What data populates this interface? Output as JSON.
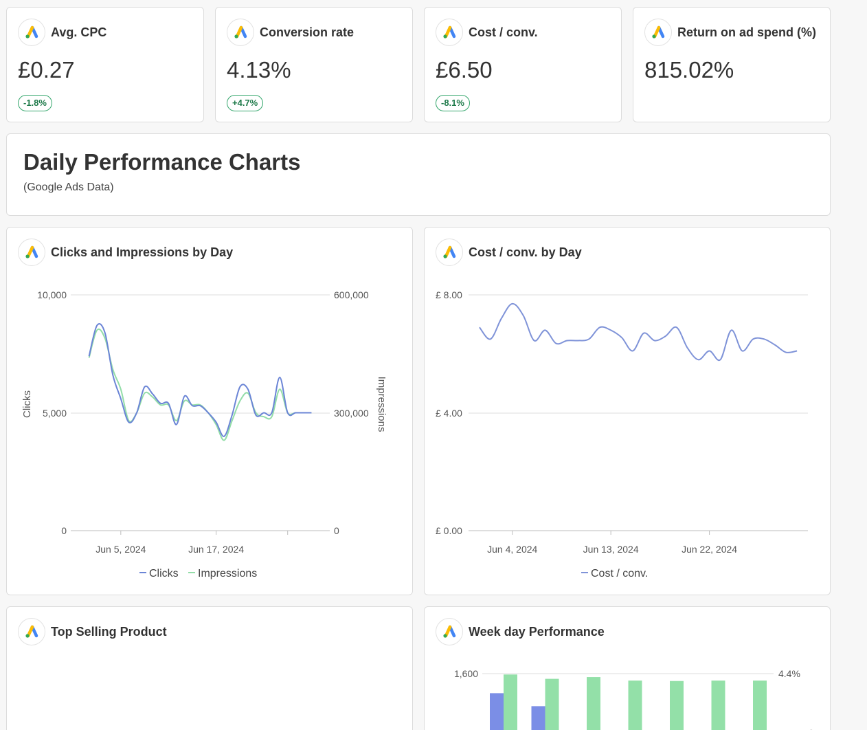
{
  "metrics": [
    {
      "title": "Avg. CPC",
      "value": "£0.27",
      "change": "-1.8%"
    },
    {
      "title": "Conversion rate",
      "value": "4.13%",
      "change": "+4.7%"
    },
    {
      "title": "Cost / conv.",
      "value": "£6.50",
      "change": "-8.1%"
    },
    {
      "title": "Return on ad spend (%)",
      "value": "815.02%",
      "change": ""
    }
  ],
  "header": {
    "title": "Daily Performance Charts",
    "subtitle": "(Google Ads Data)"
  },
  "panels": {
    "clicks_chart_title": "Clicks and Impressions by Day",
    "cost_chart_title": "Cost / conv. by Day",
    "top_product_title": "Top Selling Product",
    "weekday_title": "Week day Performance"
  },
  "colors": {
    "clicks": "#6b85d6",
    "impressions": "#93dda8",
    "cost": "#7f93d8",
    "bar_blue": "#7b8ee6",
    "bar_green": "#93e0a8",
    "badge": "#1e7a4a"
  },
  "chart_data": [
    {
      "type": "line",
      "title": "Clicks and Impressions by Day",
      "xlabel": "",
      "ylabel": "Clicks",
      "y2label": "Impressions",
      "ylim": [
        0,
        10000
      ],
      "y2lim": [
        0,
        600000
      ],
      "y_ticks": [
        "0",
        "5,000",
        "10,000"
      ],
      "y2_ticks": [
        "0",
        "300,000",
        "600,000"
      ],
      "x_tick_labels": [
        {
          "label": "Jun 5, 2024",
          "day": 5
        },
        {
          "label": "Jun 17, 2024",
          "day": 17
        }
      ],
      "x_extra_ticks": [
        26
      ],
      "x_range": [
        0,
        30
      ],
      "x": [
        1,
        2,
        3,
        4,
        5,
        6,
        7,
        8,
        9,
        10,
        11,
        12,
        13,
        14,
        15,
        16,
        17,
        18,
        19,
        20,
        21,
        22,
        23,
        24,
        25,
        26,
        27,
        28,
        29
      ],
      "series": [
        {
          "name": "Clicks",
          "axis": "left",
          "values": [
            7400,
            8700,
            8400,
            6600,
            5600,
            4600,
            5000,
            6100,
            5800,
            5400,
            5400,
            4500,
            5700,
            5300,
            5300,
            5000,
            4600,
            4000,
            4900,
            6100,
            6000,
            4900,
            5000,
            5000,
            6500,
            5000,
            5000,
            5000,
            5000
          ]
        },
        {
          "name": "Impressions",
          "axis": "right",
          "values": [
            440000,
            510000,
            490000,
            410000,
            360000,
            280000,
            300000,
            350000,
            340000,
            320000,
            320000,
            280000,
            330000,
            320000,
            320000,
            300000,
            270000,
            230000,
            280000,
            330000,
            350000,
            300000,
            290000,
            290000,
            360000,
            300000,
            300000,
            300000,
            300000
          ]
        }
      ],
      "legend": [
        "Clicks",
        "Impressions"
      ]
    },
    {
      "type": "line",
      "title": "Cost / conv. by Day",
      "xlabel": "",
      "ylabel": "",
      "ylim": [
        0,
        8
      ],
      "y_ticks": [
        "£ 0.00",
        "£ 4.00",
        "£ 8.00"
      ],
      "x_tick_labels": [
        {
          "label": "Jun 4, 2024",
          "day": 4
        },
        {
          "label": "Jun 13, 2024",
          "day": 13
        },
        {
          "label": "Jun 22, 2024",
          "day": 22
        }
      ],
      "x_range": [
        0,
        31
      ],
      "x": [
        1,
        2,
        3,
        4,
        5,
        6,
        7,
        8,
        9,
        10,
        11,
        12,
        13,
        14,
        15,
        16,
        17,
        18,
        19,
        20,
        21,
        22,
        23,
        24,
        25,
        26,
        27,
        28,
        29,
        30
      ],
      "series": [
        {
          "name": "Cost / conv.",
          "axis": "left",
          "values": [
            6.9,
            6.5,
            7.2,
            7.7,
            7.3,
            6.45,
            6.8,
            6.35,
            6.45,
            6.45,
            6.5,
            6.9,
            6.8,
            6.55,
            6.1,
            6.7,
            6.45,
            6.6,
            6.9,
            6.2,
            5.8,
            6.1,
            5.8,
            6.8,
            6.1,
            6.5,
            6.5,
            6.3,
            6.05,
            6.1
          ]
        }
      ],
      "legend": [
        "Cost / conv."
      ]
    },
    {
      "type": "bar",
      "title": "Week day Performance",
      "ylim": [
        0,
        1600
      ],
      "y_ticks": [
        "1,600"
      ],
      "y2_ticks": [
        "4.4%"
      ],
      "categories": [
        "",
        "",
        "",
        "",
        "",
        "",
        ""
      ],
      "series": [
        {
          "name": "blue",
          "values": [
            1150,
            850,
            null,
            null,
            null,
            null,
            null
          ]
        },
        {
          "name": "green",
          "values": [
            1580,
            1480,
            1520,
            1440,
            1430,
            1440,
            1440
          ]
        }
      ]
    }
  ]
}
